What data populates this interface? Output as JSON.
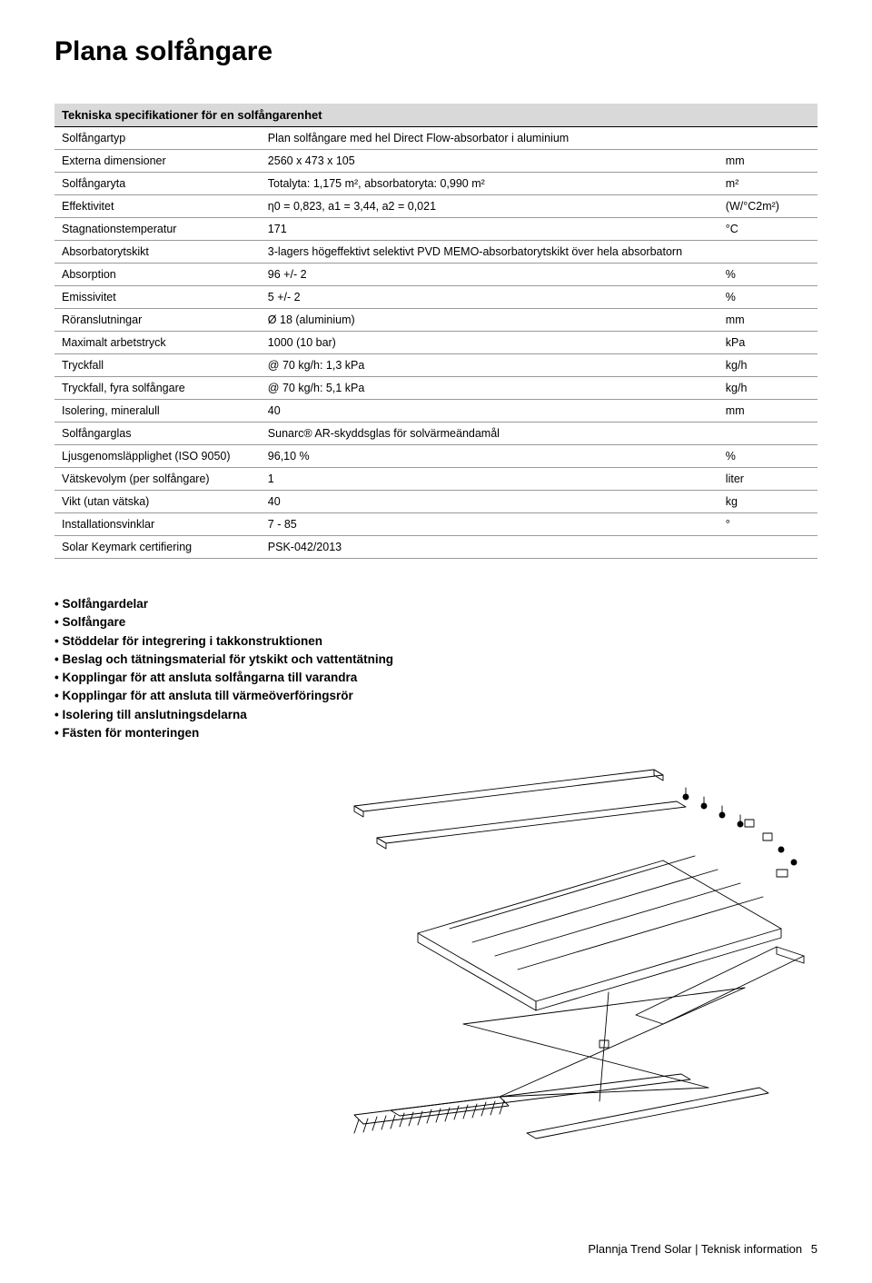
{
  "page_title": "Plana solfångare",
  "table": {
    "header": "Tekniska specifikationer för en solfångarenhet",
    "rows": [
      {
        "label": "Solfångartyp",
        "value": "Plan solfångare med hel Direct Flow-absorbator i aluminium",
        "unit": ""
      },
      {
        "label": "Externa dimensioner",
        "value": "2560 x 473 x 105",
        "unit": "mm"
      },
      {
        "label": "Solfångaryta",
        "value": "Totalyta: 1,175 m², absorbatoryta: 0,990 m²",
        "unit": "m²"
      },
      {
        "label": "Effektivitet",
        "value": "η0 = 0,823, a1 = 3,44, a2 = 0,021",
        "unit": "(W/°C2m²)"
      },
      {
        "label": "Stagnationstemperatur",
        "value": "171",
        "unit": "°C"
      },
      {
        "label": "Absorbatorytskikt",
        "value": "3-lagers högeffektivt selektivt PVD MEMO-absorbatorytskikt över hela absorbatorn",
        "unit": ""
      },
      {
        "label": "Absorption",
        "value": "96 +/- 2",
        "unit": "%"
      },
      {
        "label": "Emissivitet",
        "value": "5 +/- 2",
        "unit": "%"
      },
      {
        "label": "Röranslutningar",
        "value": "Ø 18 (aluminium)",
        "unit": "mm"
      },
      {
        "label": "Maximalt arbetstryck",
        "value": "1000 (10 bar)",
        "unit": "kPa"
      },
      {
        "label": "Tryckfall",
        "value": "@ 70 kg/h: 1,3 kPa",
        "unit": "kg/h"
      },
      {
        "label": "Tryckfall, fyra solfångare",
        "value": "@ 70 kg/h: 5,1 kPa",
        "unit": "kg/h"
      },
      {
        "label": "Isolering, mineralull",
        "value": "40",
        "unit": "mm"
      },
      {
        "label": "Solfångarglas",
        "value": "Sunarc® AR-skyddsglas för solvärmeändamål",
        "unit": ""
      },
      {
        "label": "Ljusgenomsläpplighet (ISO 9050)",
        "value": "96,10 %",
        "unit": "%"
      },
      {
        "label": "Vätskevolym (per solfångare)",
        "value": "1",
        "unit": "liter"
      },
      {
        "label": "Vikt (utan vätska)",
        "value": "40",
        "unit": "kg"
      },
      {
        "label": "Installationsvinklar",
        "value": "7 - 85",
        "unit": "°"
      },
      {
        "label": "Solar Keymark certifiering",
        "value": "PSK-042/2013",
        "unit": ""
      }
    ]
  },
  "parts": [
    "Solfångardelar",
    "Solfångare",
    "Stöddelar för integrering i takkonstruktionen",
    "Beslag och tätningsmaterial för ytskikt och vattentätning",
    "Kopplingar för att ansluta solfångarna till varandra",
    "Kopplingar för att ansluta till värmeöverföringsrör",
    "Isolering till anslutningsdelarna",
    "Fästen för monteringen"
  ],
  "footer": {
    "text": "Plannja Trend Solar | Teknisk information",
    "page": "5"
  },
  "diagram": {
    "type": "exploded-isometric",
    "stroke": "#000000",
    "stroke_width": 0.9,
    "background": "#ffffff"
  }
}
